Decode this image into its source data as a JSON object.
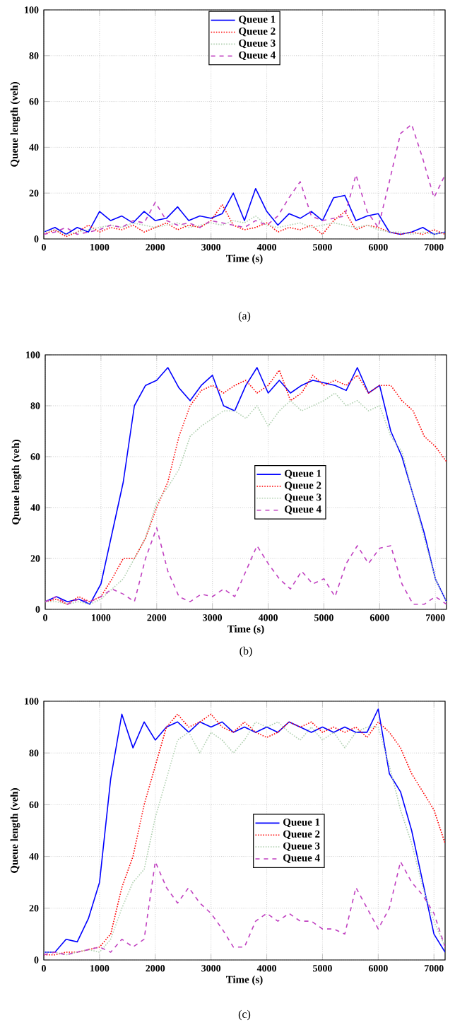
{
  "chart_data": [
    {
      "type": "line",
      "xlabel": "Time (s)",
      "ylabel": "Queue length (veh)",
      "annotations": [
        "(a)"
      ],
      "xlim": [
        0,
        7200
      ],
      "ylim": [
        0,
        100
      ],
      "xticks": [
        0,
        1000,
        2000,
        3000,
        4000,
        5000,
        6000,
        7000
      ],
      "yticks": [
        0,
        20,
        40,
        60,
        80,
        100
      ],
      "grid": true,
      "legend": "top",
      "marker": "none",
      "x": [
        0,
        200,
        400,
        600,
        800,
        1000,
        1200,
        1400,
        1600,
        1800,
        2000,
        2200,
        2400,
        2600,
        2800,
        3000,
        3200,
        3400,
        3600,
        3800,
        4000,
        4200,
        4400,
        4600,
        4800,
        5000,
        5200,
        5400,
        5600,
        5800,
        6000,
        6200,
        6400,
        6600,
        6800,
        7000,
        7200
      ],
      "series": [
        {
          "name": "Queue 1",
          "color": "#0000ff",
          "line_style": "solid",
          "values": [
            3,
            5,
            2,
            5,
            3,
            12,
            8,
            10,
            7,
            12,
            8,
            9,
            14,
            8,
            10,
            9,
            11,
            20,
            8,
            22,
            12,
            6,
            11,
            9,
            12,
            8,
            18,
            19,
            8,
            10,
            11,
            3,
            2,
            3,
            5,
            2,
            3
          ]
        },
        {
          "name": "Queue 2",
          "color": "#ff0000",
          "line_style": "dotted",
          "values": [
            2,
            4,
            1,
            3,
            6,
            3,
            5,
            4,
            6,
            3,
            5,
            7,
            4,
            6,
            5,
            8,
            15,
            6,
            4,
            5,
            7,
            3,
            5,
            4,
            6,
            2,
            8,
            12,
            4,
            6,
            5,
            3,
            2,
            3,
            2,
            4,
            2
          ]
        },
        {
          "name": "Queue 3",
          "color": "#b0d0b0",
          "line_style": "dotted",
          "values": [
            3,
            4,
            2,
            3,
            4,
            5,
            6,
            5,
            7,
            6,
            5,
            6,
            7,
            5,
            6,
            7,
            6,
            8,
            7,
            10,
            6,
            5,
            6,
            7,
            5,
            6,
            7,
            6,
            5,
            6,
            4,
            3,
            3,
            2,
            3,
            2,
            3
          ]
        },
        {
          "name": "Queue 4",
          "color": "#c040c0",
          "line_style": "dashed",
          "values": [
            2,
            3,
            5,
            2,
            3,
            4,
            6,
            5,
            8,
            7,
            16,
            8,
            6,
            7,
            5,
            8,
            7,
            6,
            5,
            8,
            6,
            10,
            18,
            25,
            10,
            8,
            9,
            10,
            28,
            12,
            5,
            25,
            46,
            50,
            35,
            18,
            28
          ]
        }
      ]
    },
    {
      "type": "line",
      "xlabel": "Time (s)",
      "ylabel": "Queue length (veh)",
      "annotations": [
        "(b)"
      ],
      "xlim": [
        0,
        7200
      ],
      "ylim": [
        0,
        100
      ],
      "xticks": [
        0,
        1000,
        2000,
        3000,
        4000,
        5000,
        6000,
        7000
      ],
      "yticks": [
        0,
        20,
        40,
        60,
        80,
        100
      ],
      "grid": true,
      "legend": "right",
      "marker": "none",
      "x": [
        0,
        200,
        400,
        600,
        800,
        1000,
        1200,
        1400,
        1600,
        1800,
        2000,
        2200,
        2400,
        2600,
        2800,
        3000,
        3200,
        3400,
        3600,
        3800,
        4000,
        4200,
        4400,
        4600,
        4800,
        5000,
        5200,
        5400,
        5600,
        5800,
        6000,
        6200,
        6400,
        6600,
        6800,
        7000,
        7200
      ],
      "series": [
        {
          "name": "Queue 1",
          "color": "#0000ff",
          "line_style": "solid",
          "values": [
            3,
            5,
            3,
            4,
            2,
            10,
            30,
            50,
            80,
            88,
            90,
            95,
            87,
            82,
            88,
            92,
            80,
            78,
            88,
            95,
            85,
            90,
            85,
            88,
            90,
            89,
            88,
            86,
            95,
            85,
            88,
            70,
            60,
            45,
            30,
            12,
            3
          ]
        },
        {
          "name": "Queue 2",
          "color": "#ff0000",
          "line_style": "dotted",
          "values": [
            3,
            4,
            2,
            5,
            3,
            5,
            12,
            20,
            20,
            28,
            40,
            50,
            68,
            80,
            86,
            88,
            85,
            88,
            90,
            85,
            88,
            94,
            82,
            85,
            92,
            88,
            90,
            88,
            92,
            85,
            88,
            88,
            82,
            78,
            68,
            64,
            58
          ]
        },
        {
          "name": "Queue 3",
          "color": "#b0d0b0",
          "line_style": "dotted",
          "values": [
            3,
            3,
            2,
            3,
            2,
            4,
            8,
            12,
            20,
            28,
            42,
            48,
            55,
            68,
            72,
            75,
            78,
            78,
            75,
            80,
            72,
            78,
            82,
            78,
            80,
            82,
            85,
            80,
            82,
            78,
            80,
            68,
            62,
            45,
            28,
            12,
            3
          ]
        },
        {
          "name": "Queue 4",
          "color": "#c040c0",
          "line_style": "dashed",
          "values": [
            3,
            5,
            2,
            4,
            3,
            5,
            8,
            6,
            3,
            20,
            32,
            15,
            5,
            3,
            6,
            5,
            8,
            5,
            15,
            25,
            18,
            12,
            8,
            15,
            10,
            12,
            5,
            18,
            25,
            18,
            24,
            25,
            10,
            2,
            2,
            5,
            2
          ]
        }
      ]
    },
    {
      "type": "line",
      "xlabel": "Time (s)",
      "ylabel": "Queue length (veh)",
      "annotations": [
        "(c)"
      ],
      "xlim": [
        0,
        7200
      ],
      "ylim": [
        0,
        100
      ],
      "xticks": [
        0,
        1000,
        2000,
        3000,
        4000,
        5000,
        6000,
        7000
      ],
      "yticks": [
        0,
        20,
        40,
        60,
        80,
        100
      ],
      "grid": true,
      "legend": "right",
      "marker": "none",
      "x": [
        0,
        200,
        400,
        600,
        800,
        1000,
        1200,
        1400,
        1600,
        1800,
        2000,
        2200,
        2400,
        2600,
        2800,
        3000,
        3200,
        3400,
        3600,
        3800,
        4000,
        4200,
        4400,
        4600,
        4800,
        5000,
        5200,
        5400,
        5600,
        5800,
        6000,
        6200,
        6400,
        6600,
        6800,
        7000,
        7200
      ],
      "series": [
        {
          "name": "Queue 1",
          "color": "#0000ff",
          "line_style": "solid",
          "values": [
            3,
            3,
            8,
            7,
            16,
            30,
            70,
            95,
            82,
            92,
            85,
            90,
            92,
            88,
            92,
            90,
            92,
            88,
            90,
            88,
            90,
            88,
            92,
            90,
            88,
            90,
            88,
            90,
            88,
            88,
            97,
            72,
            65,
            50,
            30,
            10,
            3
          ]
        },
        {
          "name": "Queue 2",
          "color": "#ff0000",
          "line_style": "dotted",
          "values": [
            2,
            2,
            3,
            3,
            4,
            5,
            10,
            28,
            40,
            60,
            75,
            90,
            95,
            90,
            92,
            95,
            90,
            88,
            92,
            88,
            86,
            88,
            92,
            90,
            92,
            88,
            90,
            88,
            90,
            86,
            92,
            88,
            82,
            72,
            65,
            58,
            45
          ]
        },
        {
          "name": "Queue 3",
          "color": "#b0d0b0",
          "line_style": "dotted",
          "values": [
            3,
            3,
            2,
            3,
            4,
            3,
            8,
            20,
            30,
            35,
            55,
            70,
            85,
            88,
            80,
            88,
            85,
            80,
            85,
            92,
            90,
            92,
            88,
            85,
            90,
            85,
            88,
            82,
            88,
            90,
            90,
            75,
            58,
            45,
            28,
            15,
            5
          ]
        },
        {
          "name": "Queue 4",
          "color": "#c040c0",
          "line_style": "dashed",
          "values": [
            2,
            3,
            2,
            3,
            4,
            5,
            3,
            8,
            5,
            8,
            38,
            28,
            22,
            28,
            22,
            18,
            12,
            5,
            5,
            15,
            18,
            15,
            18,
            15,
            15,
            12,
            12,
            10,
            28,
            20,
            12,
            20,
            38,
            30,
            25,
            18,
            5
          ]
        }
      ]
    }
  ]
}
